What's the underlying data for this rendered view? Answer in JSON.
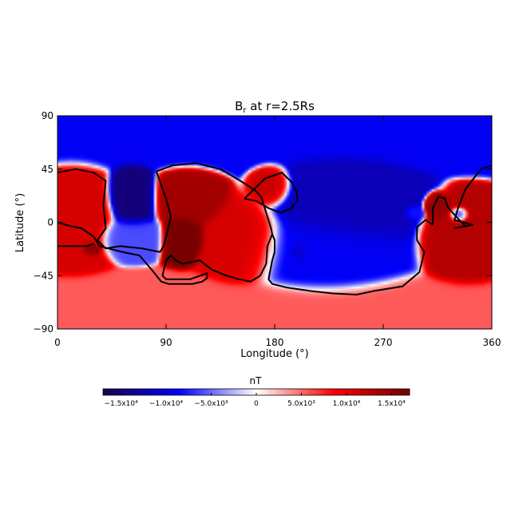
{
  "chart_data": {
    "type": "heatmap",
    "title_main": "B",
    "title_sub": "r",
    "title_rest": " at r=2.5Rs",
    "xlabel": "Longitude (°)",
    "ylabel": "Latitude (°)",
    "xlim": [
      0,
      360
    ],
    "ylim": [
      -90,
      90
    ],
    "x_ticks": [
      0,
      90,
      180,
      270,
      360
    ],
    "x_tick_labels": [
      "0",
      "90",
      "180",
      "270",
      "360"
    ],
    "y_ticks": [
      90,
      45,
      0,
      -45,
      -90
    ],
    "y_tick_labels": [
      "90",
      "45",
      "0",
      "−45",
      "−90"
    ],
    "colorbar": {
      "label": "nT",
      "range": [
        -17000,
        17000
      ],
      "ticks": [
        -15000,
        -10000,
        -5000,
        0,
        5000,
        10000,
        15000
      ],
      "tick_labels": [
        "−1.5x10⁴",
        "−1.0x10⁴",
        "−5.0x10³",
        "0",
        "5.0x10³",
        "1.0x10⁴",
        "1.5x10⁴"
      ]
    },
    "colormap": [
      "#1a0050",
      "#0000ff",
      "#ffffff",
      "#ff0000",
      "#700000"
    ],
    "contour_color": "#000000",
    "regions": [
      {
        "name": "north-polar-negative",
        "lon": 180,
        "lat": 80,
        "value": -9000,
        "rlon": 400,
        "rlat": 20
      },
      {
        "name": "south-polar-positive",
        "lon": 180,
        "lat": -80,
        "value": 5500,
        "rlon": 400,
        "rlat": 20
      },
      {
        "name": "west-positive",
        "lon": 12,
        "lat": 5,
        "value": 11000,
        "rlon": 24,
        "rlat": 28
      },
      {
        "name": "west-lower-positive",
        "lon": 28,
        "lat": -22,
        "value": 15500,
        "rlon": 6,
        "rlat": 4
      },
      {
        "name": "negative-oval",
        "lon": 62,
        "lat": 20,
        "value": -15000,
        "rlon": 14,
        "rlat": 18
      },
      {
        "name": "negative-lower",
        "lon": 62,
        "lat": -12,
        "value": -6000,
        "rlon": 18,
        "rlat": 12
      },
      {
        "name": "central-positive-top",
        "lon": 108,
        "lat": 20,
        "value": 14000,
        "rlon": 20,
        "rlat": 16
      },
      {
        "name": "central-positive-core",
        "lon": 103,
        "lat": -12,
        "value": 16500,
        "rlon": 12,
        "rlat": 14
      },
      {
        "name": "central-positive-right",
        "lon": 155,
        "lat": -18,
        "value": 11000,
        "rlon": 24,
        "rlat": 24
      },
      {
        "name": "north-positive-blob",
        "lon": 177,
        "lat": 30,
        "value": 12000,
        "rlon": 12,
        "rlat": 12
      },
      {
        "name": "negative-large",
        "lon": 235,
        "lat": 15,
        "value": -12000,
        "rlon": 42,
        "rlat": 30
      },
      {
        "name": "negative-lower-basin",
        "lon": 220,
        "lat": -25,
        "value": -9000,
        "rlon": 45,
        "rlat": 25
      },
      {
        "name": "negative-spot",
        "lon": 200,
        "lat": -25,
        "value": -12000,
        "rlon": 6,
        "rlat": 8
      },
      {
        "name": "east-positive",
        "lon": 340,
        "lat": -15,
        "value": 13000,
        "rlon": 24,
        "rlat": 24
      },
      {
        "name": "east-small-positive",
        "lon": 314,
        "lat": 12,
        "value": 15000,
        "rlon": 7,
        "rlat": 8
      },
      {
        "name": "east-negative-spot",
        "lon": 333,
        "lat": 6,
        "value": -8000,
        "rlon": 6,
        "rlat": 5
      },
      {
        "name": "east-negative-spot-2",
        "lon": 296,
        "lat": 8,
        "value": -8000,
        "rlon": 6,
        "rlat": 4
      }
    ],
    "contours": [
      {
        "name": "polarity-inversion-line-1",
        "points": [
          [
            0,
            42
          ],
          [
            15,
            45
          ],
          [
            30,
            42
          ],
          [
            40,
            35
          ],
          [
            38,
            15
          ],
          [
            40,
            -5
          ],
          [
            33,
            -15
          ],
          [
            40,
            -22
          ],
          [
            52,
            -20
          ],
          [
            70,
            -22
          ],
          [
            85,
            -25
          ],
          [
            88,
            -20
          ],
          [
            90,
            -12
          ],
          [
            93,
            0
          ],
          [
            94,
            5
          ],
          [
            90,
            20
          ],
          [
            82,
            43
          ],
          [
            95,
            48
          ],
          [
            115,
            50
          ],
          [
            135,
            45
          ],
          [
            150,
            36
          ],
          [
            158,
            31
          ],
          [
            165,
            26
          ],
          [
            169,
            21
          ],
          [
            177,
            -5
          ],
          [
            178,
            -10
          ],
          [
            174,
            -20
          ],
          [
            173,
            -35
          ],
          [
            168,
            -45
          ],
          [
            160,
            -50
          ],
          [
            150,
            -48
          ],
          [
            140,
            -45
          ],
          [
            128,
            -40
          ],
          [
            118,
            -32
          ],
          [
            104,
            -35
          ],
          [
            98,
            -32
          ],
          [
            94,
            -28
          ],
          [
            90,
            -32
          ],
          [
            87,
            -45
          ],
          [
            90,
            -48
          ],
          [
            110,
            -48
          ],
          [
            124,
            -43
          ],
          [
            124,
            -47
          ],
          [
            120,
            -50
          ],
          [
            112,
            -52
          ],
          [
            92,
            -52
          ],
          [
            86,
            -50
          ],
          [
            78,
            -40
          ],
          [
            68,
            -28
          ],
          [
            54,
            -25
          ],
          [
            42,
            -22
          ],
          [
            35,
            -20
          ],
          [
            30,
            -12
          ],
          [
            20,
            -5
          ],
          [
            10,
            -3
          ],
          [
            0,
            0
          ]
        ]
      },
      {
        "name": "polarity-inversion-line-2",
        "points": [
          [
            0,
            -20
          ],
          [
            12,
            -20
          ],
          [
            25,
            -20
          ],
          [
            30,
            -18
          ]
        ]
      },
      {
        "name": "polarity-inversion-line-3",
        "points": [
          [
            178,
            -10
          ],
          [
            180,
            -15
          ],
          [
            180,
            -25
          ],
          [
            178,
            -32
          ],
          [
            175,
            -48
          ],
          [
            178,
            -52
          ],
          [
            190,
            -55
          ],
          [
            210,
            -58
          ],
          [
            228,
            -60
          ],
          [
            248,
            -61
          ],
          [
            262,
            -58
          ],
          [
            286,
            -54
          ],
          [
            300,
            -42
          ],
          [
            304,
            -25
          ],
          [
            298,
            -15
          ],
          [
            298,
            -4
          ],
          [
            305,
            2
          ],
          [
            311,
            -2
          ],
          [
            311,
            12
          ],
          [
            316,
            22
          ],
          [
            321,
            20
          ],
          [
            324,
            12
          ],
          [
            333,
            2
          ],
          [
            338,
            -3
          ],
          [
            329,
            -5
          ],
          [
            344,
            -2
          ],
          [
            329,
            2
          ],
          [
            332,
            12
          ],
          [
            338,
            28
          ],
          [
            351,
            45
          ],
          [
            360,
            48
          ]
        ]
      },
      {
        "name": "polarity-inversion-line-4",
        "points": [
          [
            155,
            20
          ],
          [
            162,
            27
          ],
          [
            172,
            37
          ],
          [
            186,
            42
          ],
          [
            194,
            34
          ],
          [
            198,
            26
          ],
          [
            199,
            19
          ],
          [
            194,
            12
          ],
          [
            185,
            8
          ],
          [
            175,
            12
          ],
          [
            165,
            18
          ],
          [
            155,
            20
          ]
        ]
      }
    ]
  }
}
